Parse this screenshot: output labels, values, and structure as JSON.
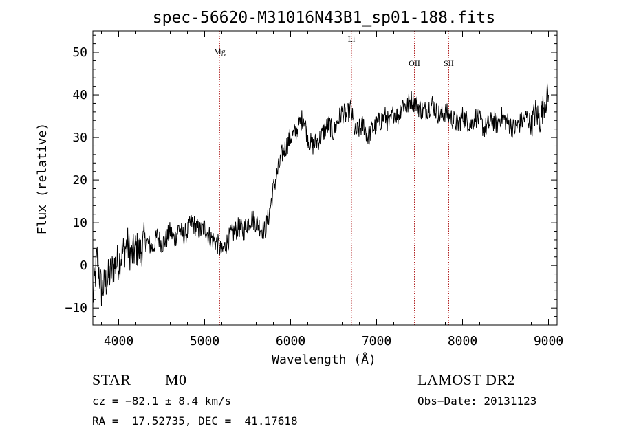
{
  "chart_data": {
    "type": "line",
    "title": "spec-56620-M31016N43B1_sp01-188.fits",
    "xlabel": "Wavelength (Å)",
    "ylabel": "Flux (relative)",
    "xlim": [
      3700,
      9100
    ],
    "ylim": [
      -14,
      55
    ],
    "xticks": [
      4000,
      5000,
      6000,
      7000,
      8000,
      9000
    ],
    "yticks": [
      -10,
      0,
      10,
      20,
      30,
      40,
      50
    ],
    "grid": false,
    "line_color": "#000000",
    "marker_color": "#b22222",
    "series": [
      {
        "x": [
          3700,
          3750,
          3800,
          3850,
          3900,
          3950,
          4000,
          4050,
          4100,
          4150,
          4200,
          4250,
          4300,
          4350,
          4400,
          4450,
          4500,
          4550,
          4600,
          4650,
          4700,
          4750,
          4800,
          4850,
          4900,
          4950,
          5000,
          5050,
          5100,
          5150,
          5200,
          5250,
          5300,
          5350,
          5400,
          5450,
          5500,
          5550,
          5600,
          5650,
          5700,
          5750,
          5800,
          5850,
          5900,
          5950,
          6000,
          6050,
          6100,
          6150,
          6200,
          6250,
          6300,
          6350,
          6400,
          6450,
          6500,
          6550,
          6600,
          6650,
          6700,
          6750,
          6800,
          6850,
          6900,
          6950,
          7000,
          7050,
          7100,
          7150,
          7200,
          7250,
          7300,
          7350,
          7400,
          7450,
          7500,
          7550,
          7600,
          7650,
          7700,
          7750,
          7800,
          7850,
          7900,
          7950,
          8000,
          8050,
          8100,
          8150,
          8200,
          8250,
          8300,
          8350,
          8400,
          8450,
          8500,
          8550,
          8600,
          8650,
          8700,
          8750,
          8800,
          8850,
          8900,
          8950,
          9000
        ],
        "y": [
          -8,
          2,
          -6,
          -4,
          -2,
          0,
          1,
          3,
          5,
          2,
          4,
          3,
          6,
          5,
          4,
          7,
          5,
          6,
          8,
          6,
          9,
          7,
          8,
          10,
          9,
          8,
          9,
          7,
          6,
          5,
          3,
          5,
          7,
          8,
          9,
          8,
          10,
          11,
          10,
          9,
          8,
          12,
          18,
          22,
          26,
          28,
          30,
          31,
          33,
          35,
          30,
          28,
          29,
          30,
          32,
          33,
          31,
          34,
          36,
          35,
          37,
          31,
          32,
          33,
          30,
          32,
          33,
          34,
          35,
          33,
          36,
          35,
          38,
          37,
          39,
          38,
          37,
          36,
          37,
          38,
          36,
          35,
          36,
          35,
          34,
          33,
          35,
          34,
          33,
          35,
          34,
          32,
          33,
          34,
          33,
          35,
          34,
          33,
          32,
          33,
          34,
          35,
          33,
          36,
          34,
          38,
          40
        ]
      }
    ],
    "markers": [
      {
        "label": "Mg",
        "x": 5175
      },
      {
        "label": "Li",
        "x": 6708
      },
      {
        "label": "OII",
        "x": 7440
      },
      {
        "label": "SII",
        "x": 7840
      }
    ]
  },
  "info": {
    "obj_class": "STAR",
    "subclass": "M0",
    "survey": "LAMOST DR2",
    "velocity": "cz = −82.1 ± 8.4 km/s",
    "obs_date": "Obs−Date: 20131123",
    "coords": "RA =  17.52735, DEC =  41.17618"
  }
}
